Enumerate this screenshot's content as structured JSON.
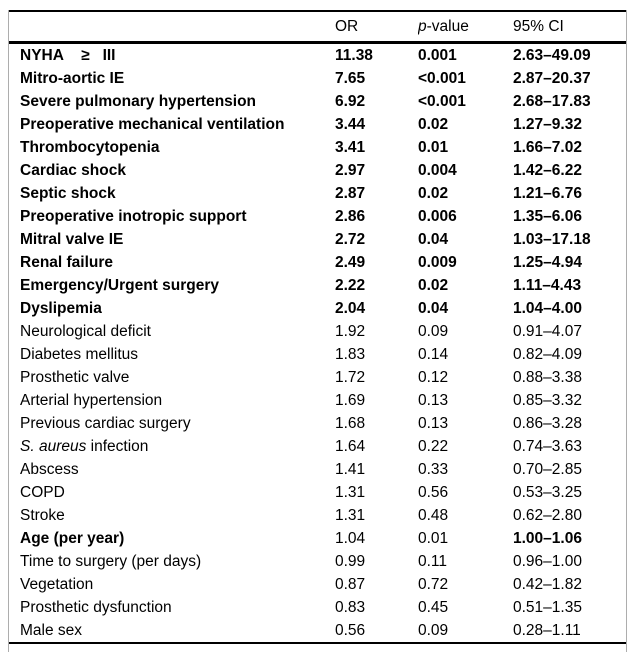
{
  "colors": {
    "rule": "#000000",
    "frame_border": "#adadad",
    "text": "#000000",
    "background": "#ffffff"
  },
  "table": {
    "headers": {
      "variable": "",
      "or": "OR",
      "p_italic": "p",
      "p_rest": "-value",
      "ci": "95% CI"
    },
    "rows": [
      {
        "label": "NYHA    ≥   III",
        "or": "11.38",
        "p": "0.001",
        "ci": "2.63–49.09",
        "bold": [
          true,
          true,
          true,
          true
        ]
      },
      {
        "label": "Mitro-aortic IE",
        "or": "7.65",
        "p": "<0.001",
        "ci": "2.87–20.37",
        "bold": [
          true,
          true,
          true,
          true
        ]
      },
      {
        "label": "Severe pulmonary hypertension",
        "or": "6.92",
        "p": "<0.001",
        "ci": "2.68–17.83",
        "bold": [
          true,
          true,
          true,
          true
        ]
      },
      {
        "label": "Preoperative mechanical ventilation",
        "or": "3.44",
        "p": "0.02",
        "ci": "1.27–9.32",
        "bold": [
          true,
          true,
          true,
          true
        ]
      },
      {
        "label": "Thrombocytopenia",
        "or": "3.41",
        "p": "0.01",
        "ci": "1.66–7.02",
        "bold": [
          true,
          true,
          true,
          true
        ]
      },
      {
        "label": "Cardiac shock",
        "or": "2.97",
        "p": "0.004",
        "ci": "1.42–6.22",
        "bold": [
          true,
          true,
          true,
          true
        ]
      },
      {
        "label": "Septic shock",
        "or": "2.87",
        "p": "0.02",
        "ci": "1.21–6.76",
        "bold": [
          true,
          true,
          true,
          true
        ]
      },
      {
        "label": "Preoperative inotropic support",
        "or": "2.86",
        "p": "0.006",
        "ci": "1.35–6.06",
        "bold": [
          true,
          true,
          true,
          true
        ]
      },
      {
        "label": "Mitral valve IE",
        "or": "2.72",
        "p": "0.04",
        "ci": "1.03–17.18",
        "bold": [
          true,
          true,
          true,
          true
        ]
      },
      {
        "label": "Renal failure",
        "or": "2.49",
        "p": "0.009",
        "ci": "1.25–4.94",
        "bold": [
          true,
          true,
          true,
          true
        ]
      },
      {
        "label": "Emergency/Urgent surgery",
        "or": "2.22",
        "p": "0.02",
        "ci": "1.11–4.43",
        "bold": [
          true,
          true,
          true,
          true
        ]
      },
      {
        "label": "Dyslipemia",
        "or": "2.04",
        "p": "0.04",
        "ci": "1.04–4.00",
        "bold": [
          true,
          true,
          true,
          true
        ]
      },
      {
        "label": "Neurological deficit",
        "or": "1.92",
        "p": "0.09",
        "ci": "0.91–4.07",
        "bold": [
          false,
          false,
          false,
          false
        ]
      },
      {
        "label": "Diabetes mellitus",
        "or": "1.83",
        "p": "0.14",
        "ci": "0.82–4.09",
        "bold": [
          false,
          false,
          false,
          false
        ]
      },
      {
        "label": "Prosthetic valve",
        "or": "1.72",
        "p": "0.12",
        "ci": "0.88–3.38",
        "bold": [
          false,
          false,
          false,
          false
        ]
      },
      {
        "label": "Arterial hypertension",
        "or": "1.69",
        "p": "0.13",
        "ci": "0.85–3.32",
        "bold": [
          false,
          false,
          false,
          false
        ]
      },
      {
        "label": "Previous cardiac surgery",
        "or": "1.68",
        "p": "0.13",
        "ci": "0.86–3.28",
        "bold": [
          false,
          false,
          false,
          false
        ]
      },
      {
        "italic": "S. aureus",
        "label": " infection",
        "or": "1.64",
        "p": "0.22",
        "ci": "0.74–3.63",
        "bold": [
          false,
          false,
          false,
          false
        ]
      },
      {
        "label": "Abscess",
        "or": "1.41",
        "p": "0.33",
        "ci": "0.70–2.85",
        "bold": [
          false,
          false,
          false,
          false
        ]
      },
      {
        "label": "COPD",
        "or": "1.31",
        "p": "0.56",
        "ci": "0.53–3.25",
        "bold": [
          false,
          false,
          false,
          false
        ]
      },
      {
        "label": "Stroke",
        "or": "1.31",
        "p": "0.48",
        "ci": "0.62–2.80",
        "bold": [
          false,
          false,
          false,
          false
        ]
      },
      {
        "label": "Age (per year)",
        "or": "1.04",
        "p": "0.01",
        "ci": "1.00–1.06",
        "bold": [
          true,
          false,
          false,
          true
        ]
      },
      {
        "label": "Time to surgery (per days)",
        "or": "0.99",
        "p": "0.11",
        "ci": "0.96–1.00",
        "bold": [
          false,
          false,
          false,
          false
        ]
      },
      {
        "label": "Vegetation",
        "or": "0.87",
        "p": "0.72",
        "ci": "0.42–1.82",
        "bold": [
          false,
          false,
          false,
          false
        ]
      },
      {
        "label": "Prosthetic dysfunction",
        "or": "0.83",
        "p": "0.45",
        "ci": "0.51–1.35",
        "bold": [
          false,
          false,
          false,
          false
        ]
      },
      {
        "label": "Male sex",
        "or": "0.56",
        "p": "0.09",
        "ci": "0.28–1.11",
        "bold": [
          false,
          false,
          false,
          false
        ]
      }
    ]
  }
}
